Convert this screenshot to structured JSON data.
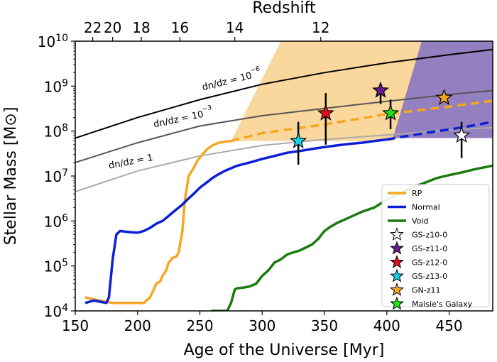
{
  "chart_data": {
    "type": "line",
    "xlabel": "Age of the Universe [Myr]",
    "ylabel": "Stellar Mass [M⊙]",
    "top_xlabel": "Redshift",
    "xlim": [
      150,
      485
    ],
    "ylim": [
      10000,
      10000000000
    ],
    "yscale": "log",
    "x_ticks": [
      150,
      200,
      250,
      300,
      350,
      400,
      450
    ],
    "y_ticks": [
      {
        "value": 10000,
        "base": "10",
        "exp": "4"
      },
      {
        "value": 100000,
        "base": "10",
        "exp": "5"
      },
      {
        "value": 1000000,
        "base": "10",
        "exp": "6"
      },
      {
        "value": 10000000,
        "base": "10",
        "exp": "7"
      },
      {
        "value": 100000000,
        "base": "10",
        "exp": "8"
      },
      {
        "value": 1000000000,
        "base": "10",
        "exp": "9"
      },
      {
        "value": 10000000000,
        "base": "10",
        "exp": "10"
      }
    ],
    "redshift_ticks": [
      {
        "label": "22",
        "age": 164
      },
      {
        "label": "20",
        "age": 180
      },
      {
        "label": "18",
        "age": 203
      },
      {
        "label": "16",
        "age": 234
      },
      {
        "label": "14",
        "age": 278
      },
      {
        "label": "12",
        "age": 347
      }
    ],
    "number_density_curves": [
      {
        "label_prefix": "dn/dz = 10",
        "label_exp": "−6",
        "color": "#000000",
        "x": [
          150,
          200,
          250,
          300,
          350,
          400,
          450,
          485
        ],
        "y": [
          70000000,
          200000000,
          500000000,
          1100000000,
          2000000000,
          3300000000,
          5000000000,
          6500000000
        ]
      },
      {
        "label_prefix": "dn/dz = 10",
        "label_exp": "−3",
        "color": "#555555",
        "x": [
          150,
          200,
          250,
          300,
          350,
          400,
          450,
          485
        ],
        "y": [
          20000000,
          55000000,
          130000000,
          220000000,
          320000000,
          460000000,
          650000000,
          800000000
        ]
      },
      {
        "label_prefix": "dn/dz = 1",
        "label_exp": "",
        "color": "#aaaaaa",
        "x": [
          150,
          200,
          250,
          300,
          350,
          400,
          450,
          485
        ],
        "y": [
          4500000,
          13000000,
          28000000,
          48000000,
          65000000,
          82000000,
          105000000,
          120000000
        ]
      }
    ],
    "shaded_regions": [
      {
        "name": "RP",
        "color": "#f5a623",
        "opacity": 0.45,
        "polygon": [
          [
            275,
            60000000
          ],
          [
            315,
            10000000000
          ],
          [
            428,
            10000000000
          ],
          [
            405,
            60000000
          ]
        ]
      },
      {
        "name": "Normal",
        "color": "#5b3a9e",
        "opacity": 0.65,
        "polygon": [
          [
            405,
            70000000
          ],
          [
            428,
            10000000000
          ],
          [
            485,
            10000000000
          ],
          [
            485,
            70000000
          ]
        ]
      }
    ],
    "series": [
      {
        "name": "RP",
        "color": "#f5a623",
        "x": [
          158,
          165,
          175,
          180,
          190,
          200,
          205,
          210,
          213,
          215,
          218,
          220,
          223,
          225,
          228,
          231,
          233,
          236,
          238,
          241,
          245,
          248,
          252,
          256,
          260,
          265,
          270,
          275
        ],
        "y": [
          20000,
          18000,
          16000,
          15000,
          15000,
          15000,
          15000,
          20000,
          30000,
          40000,
          45000,
          60000,
          80000,
          120000,
          150000,
          160000,
          200000,
          600000,
          3000000,
          10000000,
          15000000,
          22000000,
          30000000,
          40000000,
          48000000,
          55000000,
          58000000,
          60000000
        ],
        "dashed": {
          "x": [
            275,
            300,
            350,
            400,
            450,
            485
          ],
          "y": [
            60000000,
            90000000,
            140000000,
            240000000,
            350000000,
            470000000
          ]
        }
      },
      {
        "name": "Normal",
        "color": "#0a1fd6",
        "x": [
          158,
          165,
          170,
          175,
          177,
          180,
          183,
          186,
          190,
          195,
          200,
          205,
          210,
          213,
          216,
          220,
          225,
          230,
          235,
          240,
          245,
          250,
          255,
          260,
          265,
          270,
          280,
          290,
          300,
          310,
          320,
          330,
          340,
          350,
          360,
          370,
          380,
          390,
          400
        ],
        "y": [
          15000,
          17000,
          16000,
          15000,
          20000,
          140000,
          500000,
          600000,
          580000,
          560000,
          550000,
          600000,
          700000,
          800000,
          900000,
          1000000,
          1300000,
          1700000,
          2200000,
          3000000,
          4000000,
          5500000,
          7000000,
          9000000,
          11000000,
          13000000,
          17000000,
          20000000,
          24000000,
          28000000,
          33000000,
          36000000,
          40000000,
          44000000,
          48000000,
          52000000,
          55000000,
          60000000,
          65000000
        ],
        "dashed": {
          "x": [
            400,
            430,
            460,
            485
          ],
          "y": [
            65000000,
            90000000,
            120000000,
            160000000
          ]
        }
      },
      {
        "name": "Void",
        "color": "#1a7a0e",
        "x": [
          259,
          265,
          272,
          275,
          278,
          280,
          285,
          290,
          295,
          300,
          305,
          310,
          315,
          320,
          325,
          330,
          340,
          345,
          350,
          355,
          360,
          370,
          380,
          390,
          400,
          410,
          420,
          430,
          440,
          450,
          460,
          470,
          485
        ],
        "y": [
          10000,
          10000,
          10000,
          15000,
          30000,
          32000,
          33000,
          35000,
          40000,
          60000,
          80000,
          120000,
          140000,
          180000,
          200000,
          220000,
          300000,
          400000,
          600000,
          750000,
          900000,
          1200000,
          1600000,
          2000000,
          3000000,
          4000000,
          5500000,
          7000000,
          9000000,
          10500000,
          12000000,
          14000000,
          17000000
        ]
      }
    ],
    "galaxies": [
      {
        "name": "GS-z10-0",
        "color": "#ffffff",
        "x": 460,
        "y": 80000000,
        "yerr_low": 25000000,
        "yerr_high": 160000000
      },
      {
        "name": "GS-z11-0",
        "color": "#6a1a8a",
        "x": 395,
        "y": 800000000,
        "yerr_low": 400000000,
        "yerr_high": 1100000000
      },
      {
        "name": "GS-z12-0",
        "color": "#e0101b",
        "x": 351,
        "y": 250000000,
        "yerr_low": 50000000,
        "yerr_high": 700000000
      },
      {
        "name": "GS-z13-0",
        "color": "#19d3e3",
        "x": 329,
        "y": 60000000,
        "yerr_low": 18000000,
        "yerr_high": 160000000
      },
      {
        "name": "GN-z11",
        "color": "#f5a623",
        "x": 446,
        "y": 550000000,
        "yerr_low": 550000000,
        "yerr_high": 550000000
      },
      {
        "name": "Maisie's Galaxy",
        "color": "#22e01b",
        "x": 403,
        "y": 250000000,
        "yerr_low": 110000000,
        "yerr_high": 500000000
      }
    ],
    "legend": {
      "placement": "lower right",
      "lines": [
        {
          "label": "RP",
          "color": "#f5a623"
        },
        {
          "label": "Normal",
          "color": "#0a1fd6"
        },
        {
          "label": "Void",
          "color": "#1a7a0e"
        }
      ],
      "stars": [
        {
          "label": "GS-z10-0",
          "color": "#ffffff"
        },
        {
          "label": "GS-z11-0",
          "color": "#6a1a8a"
        },
        {
          "label": "GS-z12-0",
          "color": "#e0101b"
        },
        {
          "label": "GS-z13-0",
          "color": "#19d3e3"
        },
        {
          "label": "GN-z11",
          "color": "#f5a623"
        },
        {
          "label": "Maisie's Galaxy",
          "color": "#22e01b"
        }
      ]
    }
  }
}
